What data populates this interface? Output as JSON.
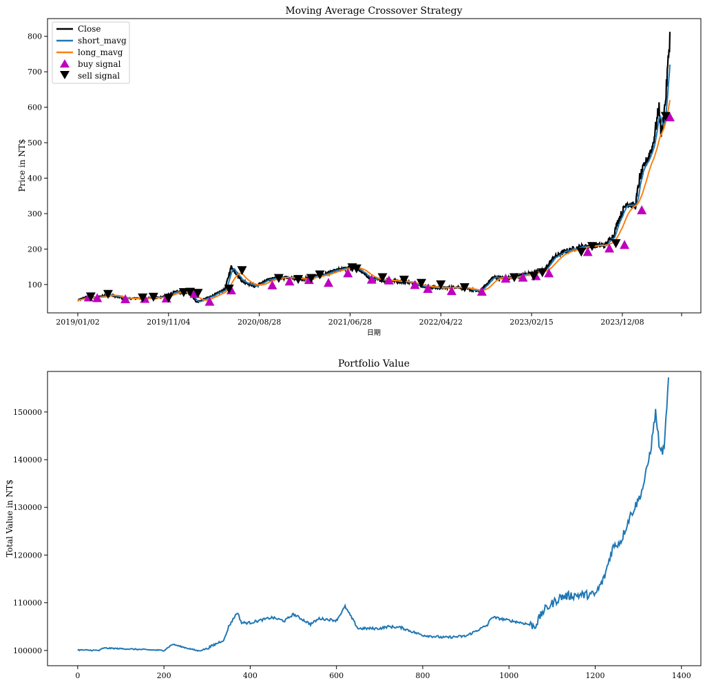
{
  "chart_data": [
    {
      "type": "line",
      "title": "Moving Average Crossover Strategy",
      "xlabel": "日期",
      "ylabel": "Price in NT$",
      "x_ticks": [
        "2019/01/02",
        "2019/11/04",
        "2020/08/28",
        "2021/06/28",
        "2022/04/22",
        "2023/02/15",
        "2023/12/08"
      ],
      "x_index_range": [
        0,
        1370
      ],
      "y_ticks": [
        100,
        200,
        300,
        400,
        500,
        600,
        700,
        800
      ],
      "ylim": [
        20,
        850
      ],
      "grid": false,
      "legend": {
        "position": "upper-left",
        "entries": [
          {
            "label": "Close",
            "color": "#000000",
            "kind": "line"
          },
          {
            "label": "short_mavg",
            "color": "#1f77b4",
            "kind": "line"
          },
          {
            "label": "long_mavg",
            "color": "#ff7f0e",
            "kind": "line"
          },
          {
            "label": "buy signal",
            "color": "#bf00bf",
            "kind": "triangle-up"
          },
          {
            "label": "sell signal",
            "color": "#000000",
            "kind": "triangle-down"
          }
        ]
      },
      "price_anchors": {
        "x": [
          0,
          20,
          40,
          70,
          110,
          150,
          190,
          230,
          260,
          275,
          300,
          340,
          355,
          380,
          410,
          450,
          490,
          520,
          560,
          600,
          640,
          680,
          720,
          760,
          800,
          840,
          880,
          930,
          960,
          1000,
          1040,
          1080,
          1100,
          1130,
          1160,
          1190,
          1220,
          1240,
          1250,
          1270,
          1290,
          1300,
          1310,
          1330,
          1345,
          1350,
          1360,
          1370
        ],
        "y": [
          55,
          65,
          62,
          72,
          60,
          62,
          63,
          80,
          75,
          50,
          62,
          85,
          150,
          110,
          95,
          118,
          120,
          115,
          125,
          140,
          150,
          115,
          112,
          108,
          95,
          90,
          93,
          80,
          120,
          118,
          130,
          140,
          175,
          195,
          205,
          210,
          210,
          240,
          280,
          330,
          320,
          400,
          430,
          490,
          600,
          520,
          620,
          800
        ]
      },
      "buy_signals": [
        {
          "x": 25,
          "y": 62
        },
        {
          "x": 45,
          "y": 60
        },
        {
          "x": 110,
          "y": 57
        },
        {
          "x": 155,
          "y": 58
        },
        {
          "x": 205,
          "y": 59
        },
        {
          "x": 270,
          "y": 72
        },
        {
          "x": 305,
          "y": 50
        },
        {
          "x": 355,
          "y": 82
        },
        {
          "x": 450,
          "y": 96
        },
        {
          "x": 490,
          "y": 107
        },
        {
          "x": 535,
          "y": 111
        },
        {
          "x": 580,
          "y": 103
        },
        {
          "x": 625,
          "y": 130
        },
        {
          "x": 680,
          "y": 112
        },
        {
          "x": 720,
          "y": 110
        },
        {
          "x": 780,
          "y": 97
        },
        {
          "x": 810,
          "y": 86
        },
        {
          "x": 865,
          "y": 80
        },
        {
          "x": 935,
          "y": 78
        },
        {
          "x": 990,
          "y": 115
        },
        {
          "x": 1030,
          "y": 118
        },
        {
          "x": 1060,
          "y": 122
        },
        {
          "x": 1090,
          "y": 130
        },
        {
          "x": 1180,
          "y": 190
        },
        {
          "x": 1230,
          "y": 200
        },
        {
          "x": 1265,
          "y": 210
        },
        {
          "x": 1305,
          "y": 308
        },
        {
          "x": 1370,
          "y": 570
        }
      ],
      "sell_signals": [
        {
          "x": 30,
          "y": 66
        },
        {
          "x": 70,
          "y": 73
        },
        {
          "x": 150,
          "y": 63
        },
        {
          "x": 175,
          "y": 65
        },
        {
          "x": 210,
          "y": 62
        },
        {
          "x": 245,
          "y": 78
        },
        {
          "x": 260,
          "y": 79
        },
        {
          "x": 278,
          "y": 76
        },
        {
          "x": 350,
          "y": 88
        },
        {
          "x": 380,
          "y": 140
        },
        {
          "x": 465,
          "y": 118
        },
        {
          "x": 510,
          "y": 115
        },
        {
          "x": 540,
          "y": 118
        },
        {
          "x": 560,
          "y": 128
        },
        {
          "x": 635,
          "y": 148
        },
        {
          "x": 645,
          "y": 145
        },
        {
          "x": 705,
          "y": 120
        },
        {
          "x": 755,
          "y": 113
        },
        {
          "x": 795,
          "y": 104
        },
        {
          "x": 840,
          "y": 100
        },
        {
          "x": 895,
          "y": 92
        },
        {
          "x": 1010,
          "y": 120
        },
        {
          "x": 1055,
          "y": 124
        },
        {
          "x": 1075,
          "y": 134
        },
        {
          "x": 1165,
          "y": 192
        },
        {
          "x": 1190,
          "y": 208
        },
        {
          "x": 1245,
          "y": 216
        },
        {
          "x": 1360,
          "y": 575
        }
      ]
    },
    {
      "type": "line",
      "title": "Portfolio Value",
      "xlabel": "",
      "ylabel": "Total Value in NT$",
      "x_ticks": [
        0,
        200,
        400,
        600,
        800,
        1000,
        1200,
        1400
      ],
      "xlim": [
        -70,
        1445
      ],
      "y_ticks": [
        100000,
        110000,
        120000,
        130000,
        140000,
        150000
      ],
      "ylim": [
        96800,
        158500
      ],
      "grid": false,
      "series": [
        {
          "color": "#1f77b4",
          "x": [
            0,
            50,
            60,
            120,
            200,
            220,
            240,
            280,
            300,
            340,
            350,
            370,
            380,
            400,
            450,
            480,
            500,
            540,
            560,
            600,
            620,
            650,
            700,
            720,
            750,
            780,
            800,
            850,
            900,
            950,
            960,
            1000,
            1040,
            1060,
            1080,
            1100,
            1120,
            1150,
            1200,
            1220,
            1240,
            1260,
            1280,
            1300,
            1310,
            1320,
            1330,
            1340,
            1350,
            1360,
            1365,
            1370
          ],
          "y": [
            100100,
            100000,
            100500,
            100300,
            100000,
            101300,
            100800,
            99900,
            100400,
            102300,
            105000,
            108000,
            105800,
            105800,
            106900,
            106200,
            107600,
            105500,
            106700,
            106300,
            109200,
            104600,
            104600,
            105000,
            104800,
            103800,
            103200,
            102700,
            103000,
            105300,
            107000,
            106300,
            105600,
            105100,
            108300,
            109800,
            111200,
            111600,
            111700,
            115000,
            121500,
            123000,
            128000,
            131500,
            134000,
            138000,
            143000,
            150000,
            141800,
            142000,
            150000,
            156800
          ]
        }
      ]
    }
  ]
}
